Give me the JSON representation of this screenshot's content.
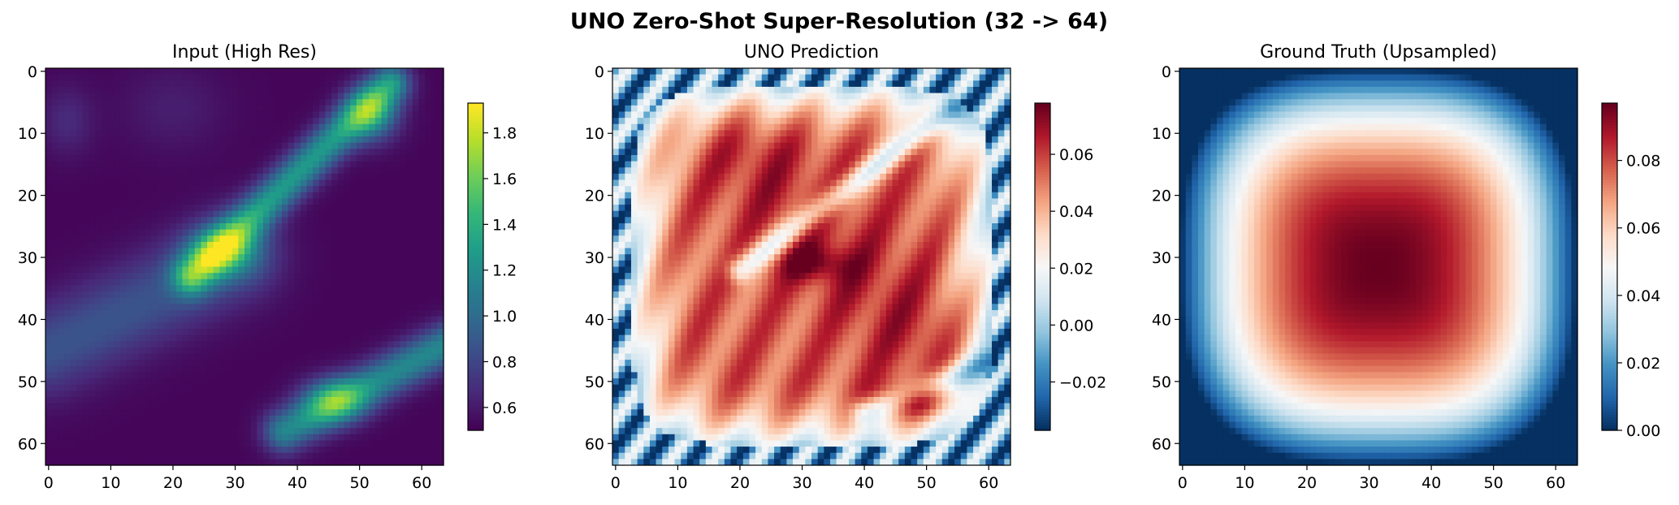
{
  "title": "UNO Zero-Shot Super-Resolution (32 -> 64)",
  "chart_data": [
    {
      "type": "heatmap",
      "title": "Input (High Res)",
      "colormap": "viridis",
      "grid": false,
      "size": 64,
      "xticks": [
        "0",
        "10",
        "20",
        "30",
        "40",
        "50",
        "60"
      ],
      "yticks": [
        "0",
        "10",
        "20",
        "30",
        "40",
        "50",
        "60"
      ],
      "vrange": [
        0.5,
        1.93
      ],
      "colorbar_ticks": [
        "0.6",
        "0.8",
        "1.0",
        "1.2",
        "1.4",
        "1.6",
        "1.8"
      ],
      "colorbar_values": [
        0.6,
        0.8,
        1.0,
        1.2,
        1.4,
        1.6,
        1.8
      ]
    },
    {
      "type": "heatmap",
      "title": "UNO Prediction",
      "colormap": "RdBu_r",
      "grid": false,
      "size": 64,
      "xticks": [
        "0",
        "10",
        "20",
        "30",
        "40",
        "50",
        "60"
      ],
      "yticks": [
        "0",
        "10",
        "20",
        "30",
        "40",
        "50",
        "60"
      ],
      "vrange": [
        -0.037,
        0.078
      ],
      "colorbar_ticks": [
        "−0.02",
        "0.00",
        "0.02",
        "0.04",
        "0.06"
      ],
      "colorbar_values": [
        -0.02,
        0.0,
        0.02,
        0.04,
        0.06
      ]
    },
    {
      "type": "heatmap",
      "title": "Ground Truth (Upsampled)",
      "colormap": "RdBu_r",
      "grid": false,
      "size": 64,
      "xticks": [
        "0",
        "10",
        "20",
        "30",
        "40",
        "50",
        "60"
      ],
      "yticks": [
        "0",
        "10",
        "20",
        "30",
        "40",
        "50",
        "60"
      ],
      "vrange": [
        0.0,
        0.097
      ],
      "colorbar_ticks": [
        "0.00",
        "0.02",
        "0.04",
        "0.06",
        "0.08"
      ],
      "colorbar_values": [
        0.0,
        0.02,
        0.04,
        0.06,
        0.08
      ]
    }
  ]
}
